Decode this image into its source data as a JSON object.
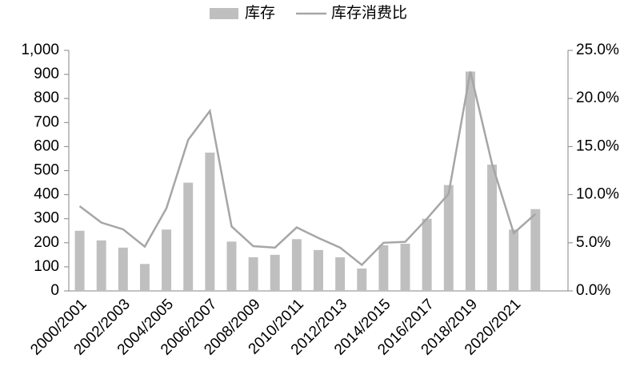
{
  "chart_data": {
    "type": "bar",
    "categories": [
      "2000/2001",
      null,
      "2002/2003",
      null,
      "2004/2005",
      null,
      "2006/2007",
      null,
      "2008/2009",
      null,
      "2010/2011",
      null,
      "2012/2013",
      null,
      "2014/2015",
      null,
      "2016/2017",
      null,
      "2018/2019",
      null,
      "2020/2021",
      null,
      null
    ],
    "series": [
      {
        "name": "库存",
        "type": "bar",
        "color": "#bfbfbf",
        "values": [
          250,
          210,
          180,
          112,
          255,
          450,
          575,
          205,
          140,
          150,
          215,
          170,
          140,
          93,
          190,
          196,
          300,
          440,
          912,
          525,
          255,
          340,
          null
        ]
      },
      {
        "name": "库存消费比",
        "type": "line",
        "axis": "y2",
        "color": "#a6a6a6",
        "values": [
          8.8,
          7.1,
          6.4,
          4.6,
          8.6,
          15.7,
          18.7,
          6.7,
          4.65,
          4.5,
          6.6,
          5.5,
          4.5,
          2.7,
          5.0,
          5.1,
          7.5,
          10.1,
          22.8,
          13.2,
          6.0,
          8.0,
          null
        ]
      }
    ],
    "ylim": [
      0,
      1000
    ],
    "yticks": [
      0,
      100,
      200,
      300,
      400,
      500,
      600,
      700,
      800,
      900,
      {
        "value": 1000,
        "label": "1,000"
      }
    ],
    "y2lim": [
      0,
      25
    ],
    "y2ticks": [
      {
        "value": 0,
        "label": "0.0%"
      },
      {
        "value": 5,
        "label": "5.0%"
      },
      {
        "value": 10,
        "label": "10.0%"
      },
      {
        "value": 15,
        "label": "15.0%"
      },
      {
        "value": 20,
        "label": "20.0%"
      },
      {
        "value": 25,
        "label": "25.0%"
      }
    ],
    "legend": "top"
  }
}
